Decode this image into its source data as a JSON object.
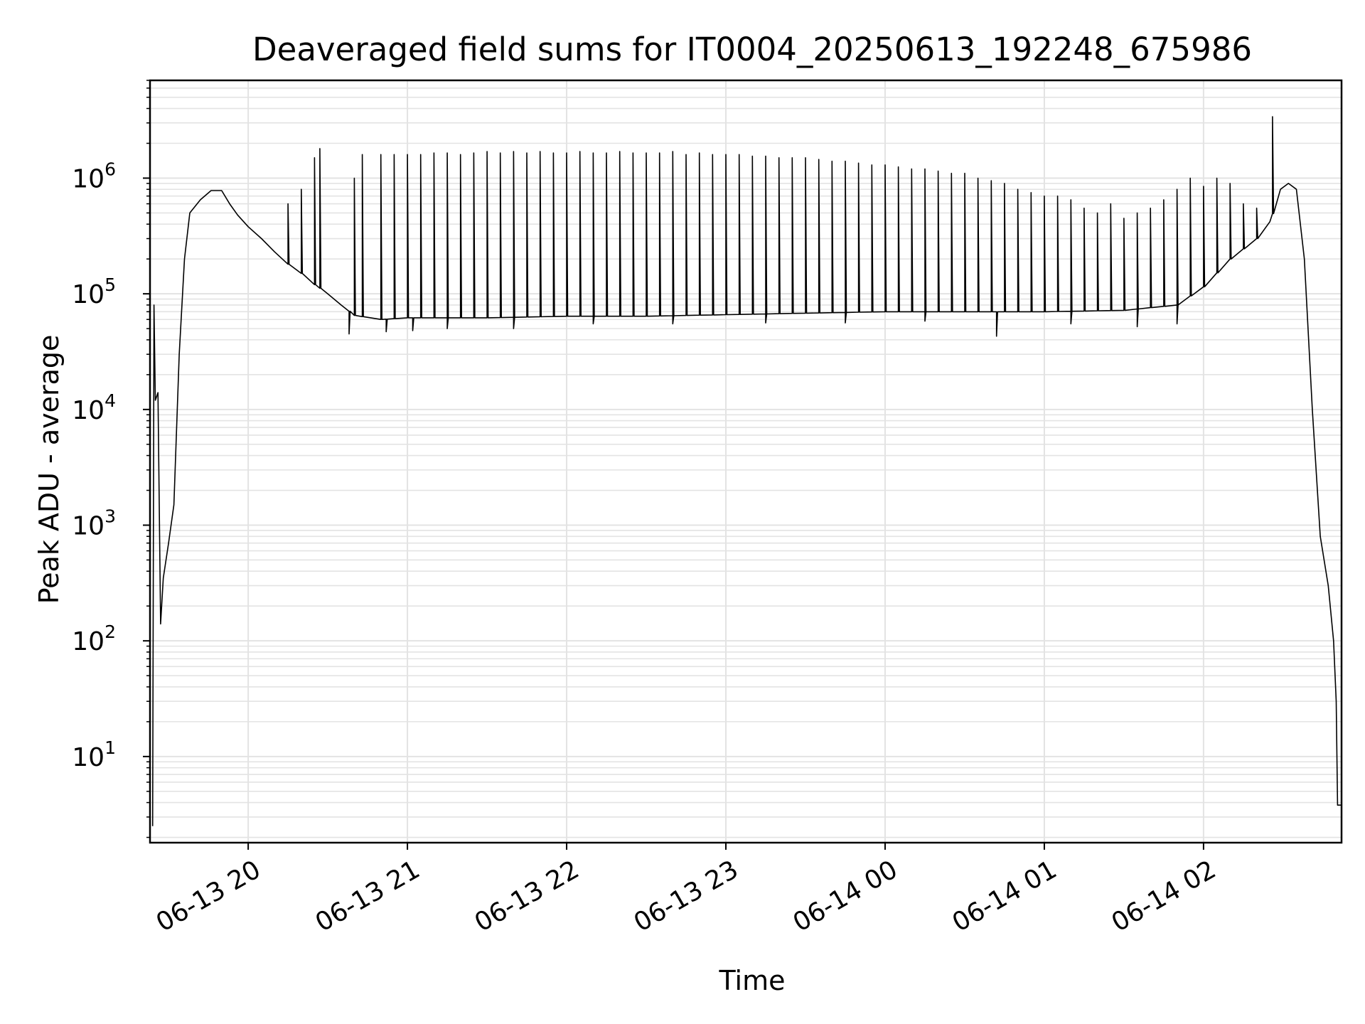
{
  "chart_data": {
    "type": "line",
    "title": "Deaveraged field sums for IT0004_20250613_192248_675986",
    "xlabel": "Time",
    "ylabel": "Peak ADU - average",
    "x_type": "time",
    "xlim": [
      "2025-06-13T19:23",
      "2025-06-14T02:52"
    ],
    "yscale": "log",
    "ylim": [
      1.8,
      7000000
    ],
    "x_ticks": [
      {
        "t": "2025-06-13T20:00",
        "label": "06-13 20"
      },
      {
        "t": "2025-06-13T21:00",
        "label": "06-13 21"
      },
      {
        "t": "2025-06-13T22:00",
        "label": "06-13 22"
      },
      {
        "t": "2025-06-13T23:00",
        "label": "06-13 23"
      },
      {
        "t": "2025-06-14T00:00",
        "label": "06-14 00"
      },
      {
        "t": "2025-06-14T01:00",
        "label": "06-14 01"
      },
      {
        "t": "2025-06-14T02:00",
        "label": "06-14 02"
      }
    ],
    "y_ticks": [
      {
        "value": 10,
        "base": "10",
        "exp": "1"
      },
      {
        "value": 100,
        "base": "10",
        "exp": "2"
      },
      {
        "value": 1000,
        "base": "10",
        "exp": "3"
      },
      {
        "value": 10000,
        "base": "10",
        "exp": "4"
      },
      {
        "value": 100000,
        "base": "10",
        "exp": "5"
      },
      {
        "value": 1000000,
        "base": "10",
        "exp": "6"
      }
    ],
    "grid": true,
    "line_color": "#000000",
    "grid_color": "#e3e3e3",
    "series": [
      {
        "points": [
          [
            "2025-06-13T19:24",
            2.5
          ],
          [
            "2025-06-13T19:24:30",
            80000
          ],
          [
            "2025-06-13T19:25",
            12000
          ],
          [
            "2025-06-13T19:26",
            14000
          ],
          [
            "2025-06-13T19:27",
            140
          ],
          [
            "2025-06-13T19:28",
            350
          ],
          [
            "2025-06-13T19:30",
            700
          ],
          [
            "2025-06-13T19:32",
            1500
          ],
          [
            "2025-06-13T19:34",
            30000
          ],
          [
            "2025-06-13T19:36",
            200000
          ],
          [
            "2025-06-13T19:38",
            500000
          ],
          [
            "2025-06-13T19:42",
            650000
          ],
          [
            "2025-06-13T19:46",
            780000
          ],
          [
            "2025-06-13T19:50",
            780000
          ],
          [
            "2025-06-13T19:53",
            600000
          ],
          [
            "2025-06-13T19:56",
            480000
          ],
          [
            "2025-06-13T20:00",
            380000
          ],
          [
            "2025-06-13T20:05",
            300000
          ],
          [
            "2025-06-13T20:10",
            230000
          ],
          [
            "2025-06-13T20:15",
            180000
          ],
          [
            "2025-06-13T20:20",
            150000
          ],
          [
            "2025-06-13T20:25",
            120000
          ],
          [
            "2025-06-13T20:30",
            100000
          ],
          [
            "2025-06-13T20:35",
            80000
          ],
          [
            "2025-06-13T20:40",
            65000
          ],
          [
            "2025-06-13T20:50",
            60000
          ],
          [
            "2025-06-13T21:00",
            62000
          ],
          [
            "2025-06-13T21:30",
            62000
          ],
          [
            "2025-06-13T22:00",
            64000
          ],
          [
            "2025-06-13T22:30",
            64000
          ],
          [
            "2025-06-13T23:00",
            66000
          ],
          [
            "2025-06-13T23:30",
            68000
          ],
          [
            "2025-06-14T00:00",
            70000
          ],
          [
            "2025-06-14T00:30",
            70000
          ],
          [
            "2025-06-14T01:00",
            70000
          ],
          [
            "2025-06-14T01:30",
            72000
          ],
          [
            "2025-06-14T01:50",
            80000
          ],
          [
            "2025-06-14T02:00",
            115000
          ],
          [
            "2025-06-14T02:10",
            200000
          ],
          [
            "2025-06-14T02:20",
            300000
          ],
          [
            "2025-06-14T02:25",
            420000
          ],
          [
            "2025-06-14T02:29",
            800000
          ],
          [
            "2025-06-14T02:32",
            900000
          ],
          [
            "2025-06-14T02:35",
            800000
          ],
          [
            "2025-06-14T02:38",
            200000
          ],
          [
            "2025-06-14T02:41",
            10000
          ],
          [
            "2025-06-14T02:44",
            800
          ],
          [
            "2025-06-14T02:47",
            300
          ],
          [
            "2025-06-14T02:49",
            100
          ],
          [
            "2025-06-14T02:50",
            30
          ],
          [
            "2025-06-14T02:50:30",
            3.8
          ],
          [
            "2025-06-14T02:52",
            3.8
          ]
        ],
        "spikes": [
          [
            "2025-06-13T20:15",
            600000
          ],
          [
            "2025-06-13T20:20",
            800000
          ],
          [
            "2025-06-13T20:25",
            1500000
          ],
          [
            "2025-06-13T20:27",
            1800000
          ],
          [
            "2025-06-13T20:40",
            1000000
          ],
          [
            "2025-06-13T20:43",
            1600000
          ],
          [
            "2025-06-13T20:50",
            1600000
          ],
          [
            "2025-06-13T20:55",
            1600000
          ],
          [
            "2025-06-13T21:00",
            1600000
          ],
          [
            "2025-06-13T21:05",
            1600000
          ],
          [
            "2025-06-13T21:10",
            1650000
          ],
          [
            "2025-06-13T21:15",
            1650000
          ],
          [
            "2025-06-13T21:20",
            1600000
          ],
          [
            "2025-06-13T21:25",
            1650000
          ],
          [
            "2025-06-13T21:30",
            1700000
          ],
          [
            "2025-06-13T21:35",
            1650000
          ],
          [
            "2025-06-13T21:40",
            1700000
          ],
          [
            "2025-06-13T21:45",
            1650000
          ],
          [
            "2025-06-13T21:50",
            1700000
          ],
          [
            "2025-06-13T21:55",
            1650000
          ],
          [
            "2025-06-13T22:00",
            1650000
          ],
          [
            "2025-06-13T22:05",
            1700000
          ],
          [
            "2025-06-13T22:10",
            1650000
          ],
          [
            "2025-06-13T22:15",
            1650000
          ],
          [
            "2025-06-13T22:20",
            1700000
          ],
          [
            "2025-06-13T22:25",
            1650000
          ],
          [
            "2025-06-13T22:30",
            1650000
          ],
          [
            "2025-06-13T22:35",
            1650000
          ],
          [
            "2025-06-13T22:40",
            1700000
          ],
          [
            "2025-06-13T22:45",
            1600000
          ],
          [
            "2025-06-13T22:50",
            1650000
          ],
          [
            "2025-06-13T22:55",
            1600000
          ],
          [
            "2025-06-13T23:00",
            1600000
          ],
          [
            "2025-06-13T23:05",
            1600000
          ],
          [
            "2025-06-13T23:10",
            1550000
          ],
          [
            "2025-06-13T23:15",
            1550000
          ],
          [
            "2025-06-13T23:20",
            1500000
          ],
          [
            "2025-06-13T23:25",
            1500000
          ],
          [
            "2025-06-13T23:30",
            1500000
          ],
          [
            "2025-06-13T23:35",
            1450000
          ],
          [
            "2025-06-13T23:40",
            1400000
          ],
          [
            "2025-06-13T23:45",
            1400000
          ],
          [
            "2025-06-13T23:50",
            1350000
          ],
          [
            "2025-06-13T23:55",
            1300000
          ],
          [
            "2025-06-14T00:00",
            1300000
          ],
          [
            "2025-06-14T00:05",
            1250000
          ],
          [
            "2025-06-14T00:10",
            1200000
          ],
          [
            "2025-06-14T00:15",
            1200000
          ],
          [
            "2025-06-14T00:20",
            1150000
          ],
          [
            "2025-06-14T00:25",
            1100000
          ],
          [
            "2025-06-14T00:30",
            1100000
          ],
          [
            "2025-06-14T00:35",
            1000000
          ],
          [
            "2025-06-14T00:40",
            950000
          ],
          [
            "2025-06-14T00:45",
            900000
          ],
          [
            "2025-06-14T00:50",
            800000
          ],
          [
            "2025-06-14T00:55",
            750000
          ],
          [
            "2025-06-14T01:00",
            700000
          ],
          [
            "2025-06-14T01:05",
            700000
          ],
          [
            "2025-06-14T01:10",
            650000
          ],
          [
            "2025-06-14T01:15",
            550000
          ],
          [
            "2025-06-14T01:20",
            500000
          ],
          [
            "2025-06-14T01:25",
            600000
          ],
          [
            "2025-06-14T01:30",
            450000
          ],
          [
            "2025-06-14T01:35",
            500000
          ],
          [
            "2025-06-14T01:40",
            550000
          ],
          [
            "2025-06-14T01:45",
            650000
          ],
          [
            "2025-06-14T01:50",
            800000
          ],
          [
            "2025-06-14T01:55",
            1000000
          ],
          [
            "2025-06-14T02:00",
            850000
          ],
          [
            "2025-06-14T02:05",
            1000000
          ],
          [
            "2025-06-14T02:10",
            900000
          ],
          [
            "2025-06-14T02:15",
            600000
          ],
          [
            "2025-06-14T02:20",
            550000
          ],
          [
            "2025-06-14T02:26",
            3400000
          ]
        ],
        "dips": [
          [
            "2025-06-13T20:38",
            45000
          ],
          [
            "2025-06-13T20:52",
            47000
          ],
          [
            "2025-06-13T21:02",
            48000
          ],
          [
            "2025-06-13T21:15",
            50000
          ],
          [
            "2025-06-13T21:40",
            50000
          ],
          [
            "2025-06-13T22:10",
            55000
          ],
          [
            "2025-06-13T22:40",
            55000
          ],
          [
            "2025-06-13T23:15",
            56000
          ],
          [
            "2025-06-13T23:45",
            56000
          ],
          [
            "2025-06-14T00:15",
            58000
          ],
          [
            "2025-06-14T00:42",
            43000
          ],
          [
            "2025-06-14T01:10",
            55000
          ],
          [
            "2025-06-14T01:35",
            52000
          ],
          [
            "2025-06-14T01:50",
            55000
          ]
        ]
      }
    ]
  }
}
